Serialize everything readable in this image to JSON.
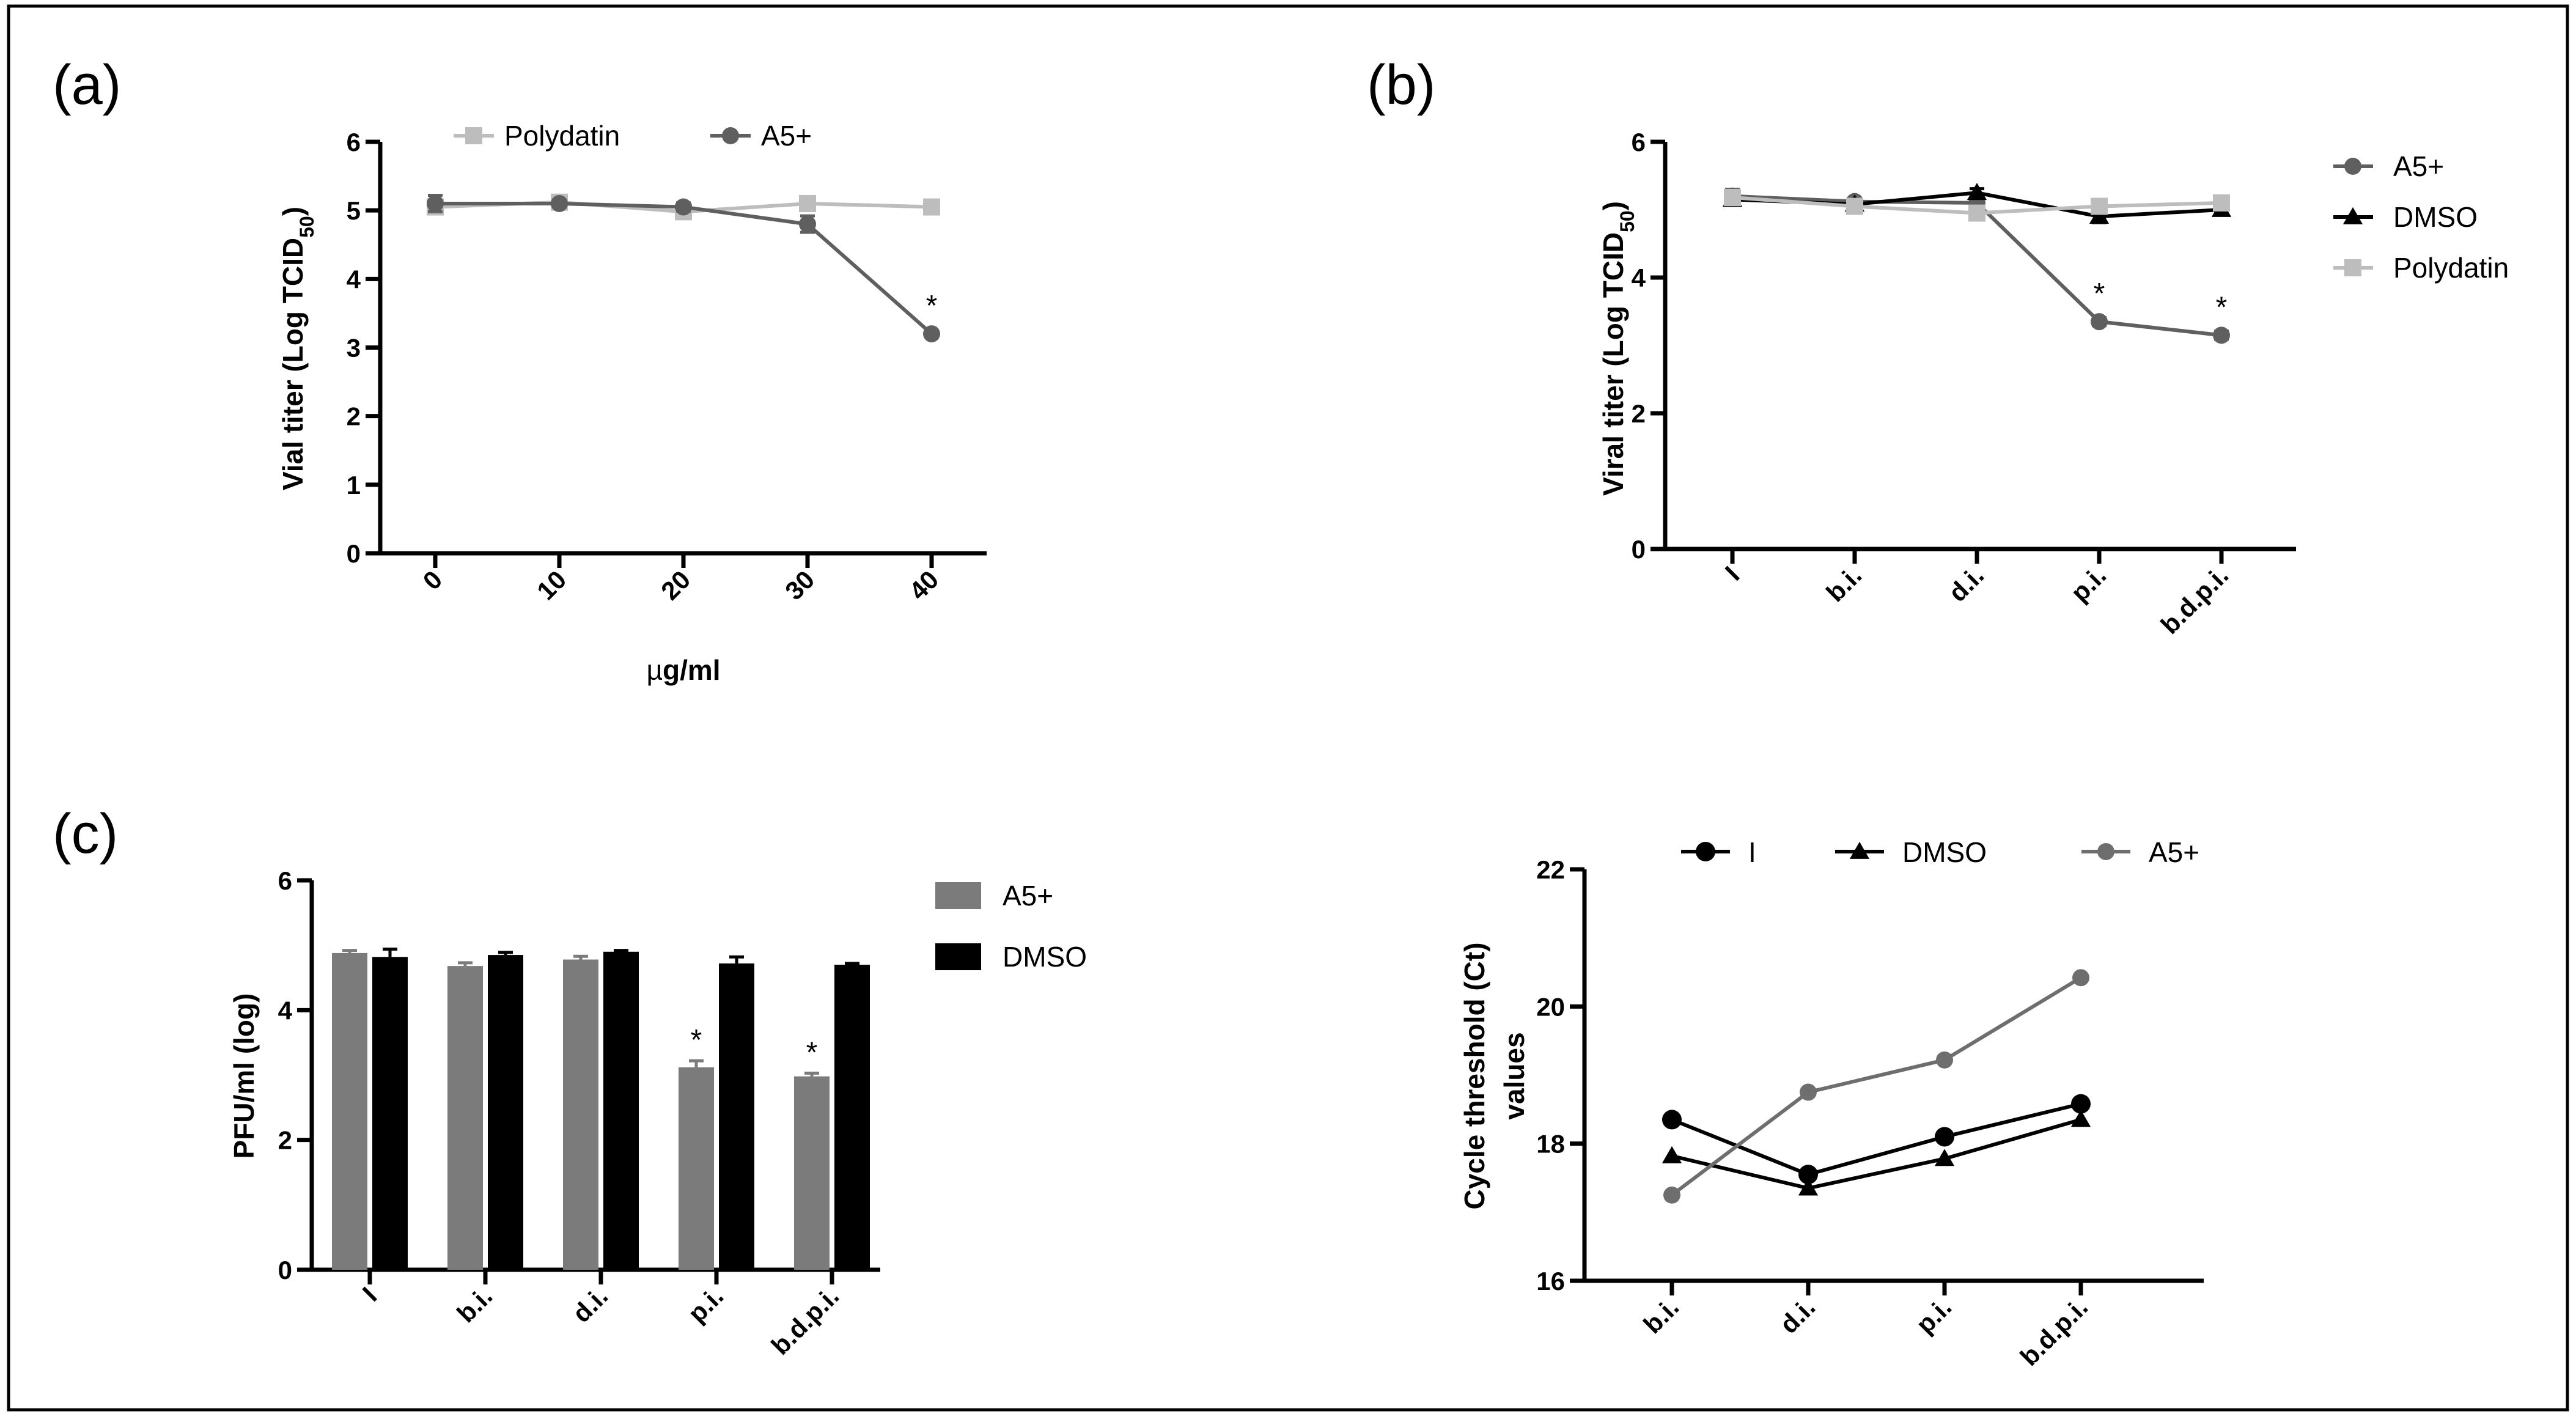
{
  "panel_labels": {
    "a": "(a)",
    "b": "(b)",
    "c": "(c)"
  },
  "colors": {
    "a5": "#5f5f5f",
    "a5_light": "#6e6e6e",
    "polydatin": "#bdbdbd",
    "dmso": "#000000",
    "i": "#000000",
    "bar_a5": "#7b7b7b"
  },
  "chart_data": [
    {
      "id": "a",
      "type": "line",
      "title": "",
      "xlabel_prefix": "µ",
      "xlabel_suffix": "g/ml",
      "ylabel_main": "Vial titer (Log  TCID",
      "ylabel_sub": "50",
      "ylabel_close": ")",
      "categories": [
        "0",
        "10",
        "20",
        "30",
        "40"
      ],
      "ylim": [
        0,
        6
      ],
      "yticks": [
        "0",
        "1",
        "2",
        "3",
        "4",
        "5",
        "6"
      ],
      "legend": [
        "Polydatin",
        "A5+"
      ],
      "series": [
        {
          "name": "Polydatin",
          "values": [
            5.05,
            5.12,
            4.98,
            5.1,
            5.05
          ],
          "errors": [
            0.06,
            0.05,
            0.08,
            0.05,
            0.05
          ]
        },
        {
          "name": "A5+",
          "values": [
            5.1,
            5.1,
            5.05,
            4.8,
            3.2
          ],
          "errors": [
            0.12,
            0.05,
            0.06,
            0.12,
            0.04
          ]
        }
      ],
      "annotations": [
        {
          "series": "A5+",
          "index": 4,
          "text": "*"
        }
      ]
    },
    {
      "id": "b",
      "type": "line",
      "title": "",
      "ylabel_main": "Viral titer (Log  TCID",
      "ylabel_sub": "50",
      "ylabel_close": ")",
      "categories": [
        "I",
        "b.i.",
        "d.i.",
        "p.i.",
        "b.d.p.i."
      ],
      "ylim": [
        0,
        6
      ],
      "yticks": [
        "0",
        "2",
        "4",
        "6"
      ],
      "legend": [
        "A5+",
        "DMSO",
        "Polydatin"
      ],
      "series": [
        {
          "name": "A5+",
          "values": [
            5.2,
            5.12,
            5.1,
            3.35,
            3.15
          ],
          "errors": [
            0.1,
            0.05,
            0.05,
            0.06,
            0.06
          ]
        },
        {
          "name": "DMSO",
          "values": [
            5.15,
            5.08,
            5.25,
            4.9,
            5.0
          ],
          "errors": [
            0.05,
            0.05,
            0.06,
            0.09,
            0.06
          ]
        },
        {
          "name": "Polydatin",
          "values": [
            5.18,
            5.05,
            4.95,
            5.05,
            5.1
          ],
          "errors": [
            0.04,
            0.06,
            0.08,
            0.06,
            0.07
          ]
        }
      ],
      "annotations": [
        {
          "series": "A5+",
          "index": 3,
          "text": "*"
        },
        {
          "series": "A5+",
          "index": 4,
          "text": "*"
        }
      ]
    },
    {
      "id": "c",
      "type": "bar",
      "title": "",
      "ylabel": "PFU/ml (log)",
      "categories": [
        "I",
        "b.i.",
        "d.i.",
        "p.i.",
        "b.d.p.i."
      ],
      "ylim": [
        0,
        6
      ],
      "yticks": [
        "0",
        "2",
        "4",
        "6"
      ],
      "legend": [
        "A5+",
        "DMSO"
      ],
      "series": [
        {
          "name": "A5+",
          "values": [
            4.88,
            4.68,
            4.78,
            3.12,
            2.98
          ],
          "errors": [
            0.04,
            0.05,
            0.05,
            0.1,
            0.05
          ]
        },
        {
          "name": "DMSO",
          "values": [
            4.82,
            4.85,
            4.9,
            4.72,
            4.7
          ],
          "errors": [
            0.12,
            0.04,
            0.02,
            0.1,
            0.02
          ]
        }
      ],
      "annotations": [
        {
          "series": "A5+",
          "index": 3,
          "text": "*"
        },
        {
          "series": "A5+",
          "index": 4,
          "text": "*"
        }
      ]
    },
    {
      "id": "d",
      "type": "line",
      "title": "",
      "ylabel_line1": "Cycle threshold (Ct)",
      "ylabel_line2": "values",
      "categories": [
        "b.i.",
        "d.i.",
        "p.i.",
        "b.d.p.i."
      ],
      "ylim": [
        16,
        22
      ],
      "yticks": [
        "16",
        "18",
        "20",
        "22"
      ],
      "legend": [
        "I",
        "DMSO",
        "A5+"
      ],
      "series": [
        {
          "name": "I",
          "values": [
            18.35,
            17.55,
            18.1,
            18.58
          ]
        },
        {
          "name": "DMSO",
          "values": [
            17.82,
            17.35,
            17.78,
            18.35
          ]
        },
        {
          "name": "A5+",
          "values": [
            17.25,
            18.75,
            19.22,
            20.42
          ]
        }
      ]
    }
  ]
}
